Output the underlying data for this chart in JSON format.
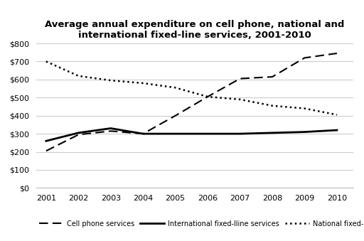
{
  "title": "Average annual expenditure on cell phone, national and\ninternational fixed-line services, 2001-2010",
  "years": [
    2001,
    2002,
    2003,
    2004,
    2005,
    2006,
    2007,
    2008,
    2009,
    2010
  ],
  "cell_phone": [
    205,
    295,
    315,
    300,
    400,
    505,
    605,
    615,
    720,
    745
  ],
  "intl_fixed": [
    260,
    305,
    330,
    300,
    300,
    300,
    300,
    305,
    310,
    320
  ],
  "natl_fixed": [
    700,
    620,
    595,
    580,
    555,
    505,
    490,
    455,
    440,
    405
  ],
  "ylim": [
    0,
    800
  ],
  "yticks": [
    0,
    100,
    200,
    300,
    400,
    500,
    600,
    700,
    800
  ],
  "background_color": "#ffffff",
  "grid_color": "#cccccc",
  "line_color": "#000000",
  "legend_labels": [
    "Cell phone services",
    "International fixed-lline services",
    "National fixed-line services"
  ]
}
